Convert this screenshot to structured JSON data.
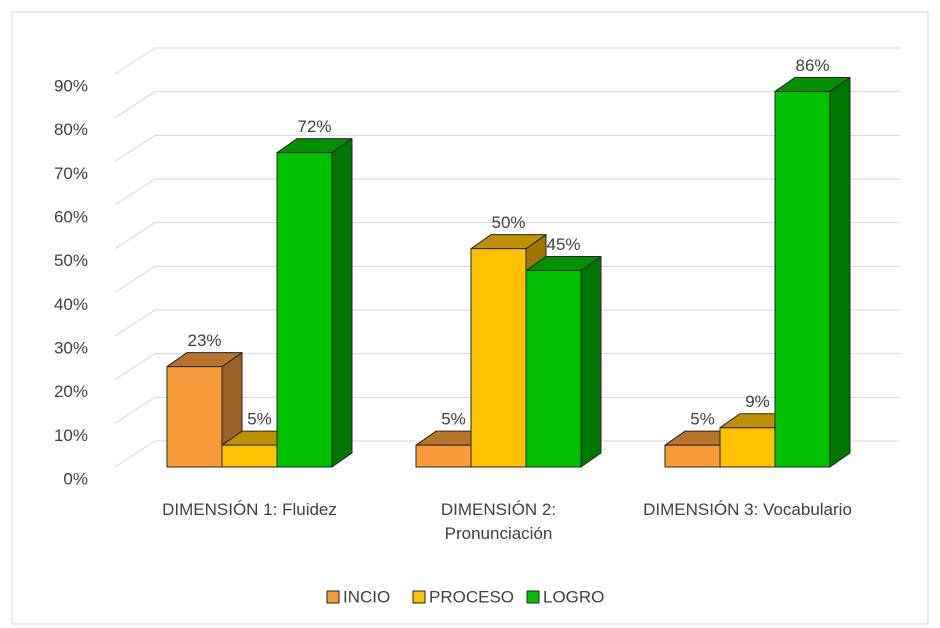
{
  "chart_data": {
    "type": "bar3d",
    "categories": [
      "DIMENSIÓN 1: Fluidez",
      "DIMENSIÓN 2: Pronunciación",
      "DIMENSIÓN 3: Vocabulario"
    ],
    "series": [
      {
        "name": "INCIO",
        "color": "#F79A3A",
        "values": [
          23,
          5,
          5
        ],
        "value_labels": [
          "23%",
          "5%",
          "5%"
        ]
      },
      {
        "name": "PROCESO",
        "color": "#FFC000",
        "values": [
          5,
          50,
          9
        ],
        "value_labels": [
          "5%",
          "50%",
          "9%"
        ]
      },
      {
        "name": "LOGRO",
        "color": "#00C000",
        "values": [
          72,
          45,
          86
        ],
        "value_labels": [
          "72%",
          "45%",
          "86%"
        ]
      }
    ],
    "ylim": [
      0,
      90
    ],
    "yticks": [
      {
        "value": 0,
        "label": "0%"
      },
      {
        "value": 10,
        "label": "10%"
      },
      {
        "value": 20,
        "label": "20%"
      },
      {
        "value": 30,
        "label": "30%"
      },
      {
        "value": 40,
        "label": "40%"
      },
      {
        "value": 50,
        "label": "50%"
      },
      {
        "value": 60,
        "label": "60%"
      },
      {
        "value": 70,
        "label": "70%"
      },
      {
        "value": 80,
        "label": "80%"
      },
      {
        "value": 90,
        "label": "90%"
      }
    ],
    "grid": true,
    "legend": "bottom"
  }
}
